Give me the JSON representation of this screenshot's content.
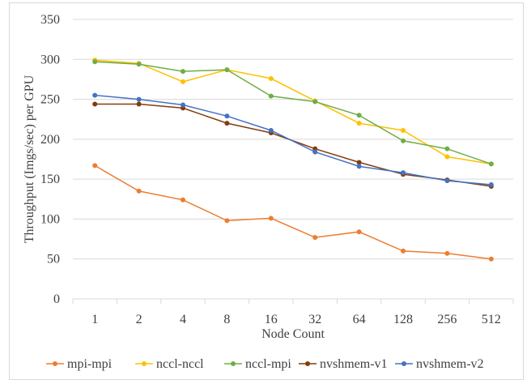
{
  "chart_data": {
    "type": "line",
    "title": "",
    "xlabel": "Node Count",
    "ylabel": "Throughput (Imgs/sec) per GPU",
    "categories": [
      "1",
      "2",
      "4",
      "8",
      "16",
      "32",
      "64",
      "128",
      "256",
      "512"
    ],
    "ylim": [
      0,
      350
    ],
    "yticks": [
      "0",
      "50",
      "100",
      "150",
      "200",
      "250",
      "300",
      "350"
    ],
    "grid": true,
    "legend_position": "bottom",
    "series": [
      {
        "name": "mpi-mpi",
        "color": "#ed7d31",
        "values": [
          167,
          135,
          124,
          98,
          101,
          77,
          84,
          60,
          57,
          50
        ]
      },
      {
        "name": "nccl-nccl",
        "color": "#ffc000",
        "values": [
          299,
          295,
          272,
          287,
          276,
          248,
          220,
          211,
          178,
          169
        ]
      },
      {
        "name": "nccl-mpi",
        "color": "#70ad47",
        "values": [
          297,
          294,
          285,
          287,
          254,
          247,
          230,
          198,
          188,
          169
        ]
      },
      {
        "name": "nvshmem-v1",
        "color": "#843c0c",
        "values": [
          244,
          244,
          239,
          220,
          208,
          188,
          171,
          156,
          149,
          141
        ]
      },
      {
        "name": "nvshmem-v2",
        "color": "#4472c4",
        "values": [
          255,
          250,
          243,
          229,
          211,
          184,
          166,
          158,
          148,
          143
        ]
      }
    ]
  }
}
